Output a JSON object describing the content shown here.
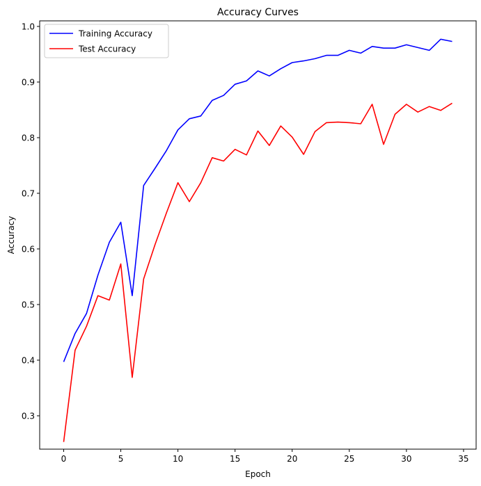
{
  "chart_data": {
    "type": "line",
    "title": "Accuracy Curves",
    "xlabel": "Epoch",
    "ylabel": "Accuracy",
    "xlim": [
      -2.1,
      36.1
    ],
    "ylim": [
      0.24,
      1.01
    ],
    "xticks": [
      0,
      5,
      10,
      15,
      20,
      25,
      30,
      35
    ],
    "yticks": [
      0.3,
      0.4,
      0.5,
      0.6,
      0.7,
      0.8,
      0.9,
      1.0
    ],
    "xtick_labels": [
      "0",
      "5",
      "10",
      "15",
      "20",
      "25",
      "30",
      "35"
    ],
    "ytick_labels": [
      "0.3",
      "0.4",
      "0.5",
      "0.6",
      "0.7",
      "0.8",
      "0.9",
      "1.0"
    ],
    "legend_position": "top-left",
    "x": [
      0,
      1,
      2,
      3,
      4,
      5,
      6,
      7,
      8,
      9,
      10,
      11,
      12,
      13,
      14,
      15,
      16,
      17,
      18,
      19,
      20,
      21,
      22,
      23,
      24,
      25,
      26,
      27,
      28,
      29,
      30,
      31,
      32,
      33,
      34
    ],
    "series": [
      {
        "name": "Training Accuracy",
        "color": "#0000ff",
        "values": [
          0.397,
          0.448,
          0.484,
          0.553,
          0.612,
          0.648,
          0.516,
          0.714,
          0.745,
          0.777,
          0.814,
          0.834,
          0.839,
          0.867,
          0.876,
          0.896,
          0.902,
          0.92,
          0.911,
          0.924,
          0.935,
          0.938,
          0.942,
          0.948,
          0.948,
          0.957,
          0.952,
          0.964,
          0.961,
          0.961,
          0.967,
          0.962,
          0.957,
          0.977,
          0.973
        ]
      },
      {
        "name": "Test Accuracy",
        "color": "#ff0000",
        "values": [
          0.253,
          0.418,
          0.461,
          0.516,
          0.508,
          0.573,
          0.369,
          0.546,
          0.608,
          0.665,
          0.719,
          0.685,
          0.719,
          0.764,
          0.758,
          0.779,
          0.769,
          0.812,
          0.786,
          0.821,
          0.801,
          0.77,
          0.811,
          0.827,
          0.828,
          0.827,
          0.825,
          0.86,
          0.788,
          0.842,
          0.86,
          0.846,
          0.856,
          0.849,
          0.862
        ]
      }
    ]
  }
}
